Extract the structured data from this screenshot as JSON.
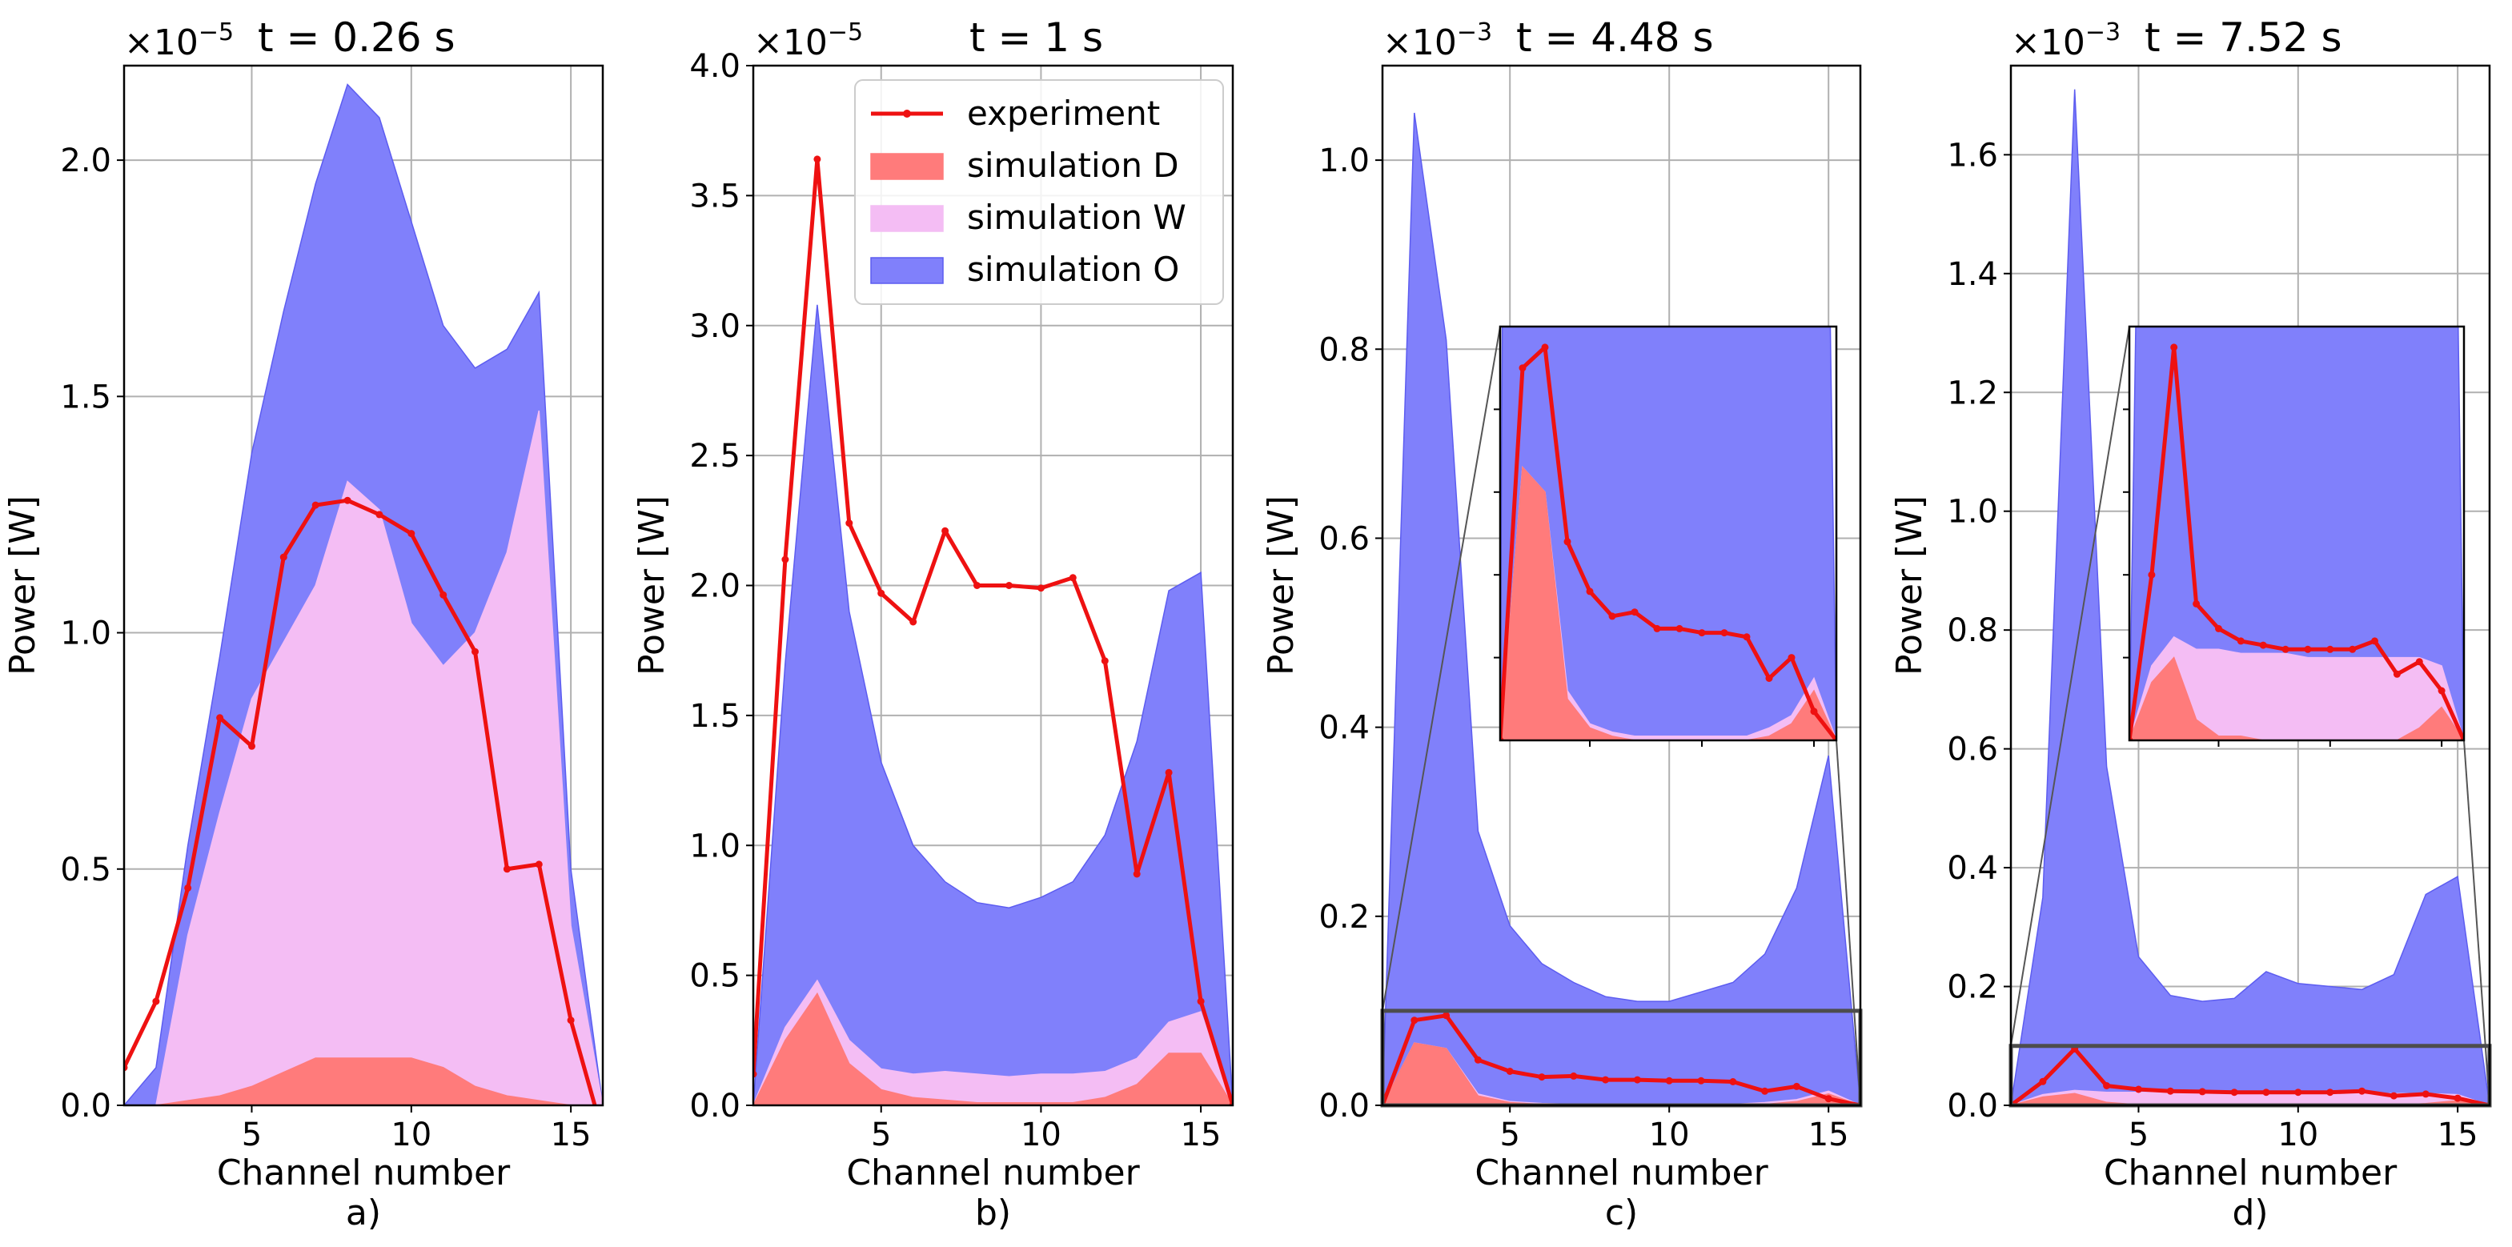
{
  "chart_data": [
    {
      "type": "area",
      "panel_label": "a)",
      "title": "t = 0.26 s",
      "multiplier_base": "×10",
      "multiplier_exp": "−5",
      "xlabel": "Channel number",
      "ylabel": "Power [W]",
      "xlim": [
        1,
        16
      ],
      "ylim": [
        0,
        2.2
      ],
      "xticks": [
        5,
        10,
        15
      ],
      "yticks": [
        0.0,
        0.5,
        1.0,
        1.5,
        2.0
      ],
      "ytick_labels": [
        "0.0",
        "0.5",
        "1.0",
        "1.5",
        "2.0"
      ],
      "x": [
        1,
        2,
        3,
        4,
        5,
        6,
        7,
        8,
        9,
        10,
        11,
        12,
        13,
        14,
        15,
        16
      ],
      "series": [
        {
          "name": "simulation O",
          "values": [
            0.0,
            0.08,
            0.55,
            0.95,
            1.38,
            1.68,
            1.95,
            2.16,
            2.09,
            1.87,
            1.65,
            1.56,
            1.6,
            1.72,
            0.5,
            0.0
          ]
        },
        {
          "name": "simulation W",
          "values": [
            0.0,
            0.0,
            0.36,
            0.62,
            0.86,
            0.98,
            1.1,
            1.32,
            1.26,
            1.02,
            0.93,
            1.0,
            1.17,
            1.47,
            0.38,
            0.0
          ]
        },
        {
          "name": "simulation D",
          "values": [
            0.0,
            0.0,
            0.01,
            0.02,
            0.04,
            0.07,
            0.1,
            0.1,
            0.1,
            0.1,
            0.08,
            0.04,
            0.02,
            0.01,
            0.0,
            0.0
          ]
        },
        {
          "name": "experiment",
          "values": [
            0.08,
            0.22,
            0.46,
            0.82,
            0.76,
            1.16,
            1.27,
            1.28,
            1.25,
            1.21,
            1.08,
            0.96,
            0.5,
            0.51,
            0.18,
            -0.06
          ]
        }
      ]
    },
    {
      "type": "area",
      "panel_label": "b)",
      "title": "t = 1 s",
      "multiplier_base": "×10",
      "multiplier_exp": "−5",
      "xlabel": "Channel number",
      "ylabel": "Power [W]",
      "xlim": [
        1,
        16
      ],
      "ylim": [
        0,
        4.0
      ],
      "xticks": [
        5,
        10,
        15
      ],
      "yticks": [
        0.0,
        0.5,
        1.0,
        1.5,
        2.0,
        2.5,
        3.0,
        3.5,
        4.0
      ],
      "ytick_labels": [
        "0.0",
        "0.5",
        "1.0",
        "1.5",
        "2.0",
        "2.5",
        "3.0",
        "3.5",
        "4.0"
      ],
      "x": [
        1,
        2,
        3,
        4,
        5,
        6,
        7,
        8,
        9,
        10,
        11,
        12,
        13,
        14,
        15,
        16
      ],
      "series": [
        {
          "name": "simulation O",
          "values": [
            0.0,
            1.7,
            3.08,
            1.9,
            1.32,
            1.0,
            0.86,
            0.78,
            0.76,
            0.8,
            0.86,
            1.04,
            1.4,
            1.98,
            2.05,
            0.0
          ]
        },
        {
          "name": "simulation W",
          "values": [
            0.0,
            0.3,
            0.48,
            0.25,
            0.14,
            0.12,
            0.13,
            0.12,
            0.11,
            0.12,
            0.12,
            0.13,
            0.18,
            0.32,
            0.36,
            0.0
          ]
        },
        {
          "name": "simulation D",
          "values": [
            0.0,
            0.25,
            0.43,
            0.16,
            0.06,
            0.03,
            0.02,
            0.01,
            0.01,
            0.01,
            0.01,
            0.03,
            0.08,
            0.2,
            0.2,
            0.0
          ]
        },
        {
          "name": "experiment",
          "values": [
            0.12,
            2.1,
            3.64,
            2.24,
            1.97,
            1.86,
            2.21,
            2.0,
            2.0,
            1.99,
            2.03,
            1.71,
            0.89,
            1.28,
            0.4,
            0.0
          ]
        }
      ],
      "legend": {
        "placement": "top-right",
        "entries": [
          "experiment",
          "simulation D",
          "simulation W",
          "simulation O"
        ]
      }
    },
    {
      "type": "area",
      "panel_label": "c)",
      "title": "t = 4.48 s",
      "multiplier_base": "×10",
      "multiplier_exp": "−3",
      "xlabel": "Channel number",
      "ylabel": "Power [W]",
      "xlim": [
        1,
        16
      ],
      "ylim": [
        0,
        1.1
      ],
      "xticks": [
        5,
        10,
        15
      ],
      "yticks": [
        0.0,
        0.2,
        0.4,
        0.6,
        0.8,
        1.0
      ],
      "ytick_labels": [
        "0.0",
        "0.2",
        "0.4",
        "0.6",
        "0.8",
        "1.0"
      ],
      "zoom_box_ylim": [
        0,
        0.1
      ],
      "x": [
        1,
        2,
        3,
        4,
        5,
        6,
        7,
        8,
        9,
        10,
        11,
        12,
        13,
        14,
        15,
        16
      ],
      "series": [
        {
          "name": "simulation O",
          "values": [
            0.0,
            1.05,
            0.81,
            0.29,
            0.19,
            0.15,
            0.13,
            0.115,
            0.11,
            0.11,
            0.12,
            0.13,
            0.16,
            0.23,
            0.37,
            0.0
          ]
        },
        {
          "name": "simulation W",
          "values": [
            0.0,
            0.066,
            0.06,
            0.012,
            0.004,
            0.002,
            0.001,
            0.001,
            0.001,
            0.001,
            0.001,
            0.001,
            0.003,
            0.006,
            0.015,
            0.0
          ]
        },
        {
          "name": "simulation D",
          "values": [
            0.0,
            0.066,
            0.06,
            0.01,
            0.003,
            0.001,
            0.0,
            0.0,
            0.0,
            0.0,
            0.0,
            0.0,
            0.001,
            0.004,
            0.012,
            0.0
          ]
        },
        {
          "name": "experiment",
          "values": [
            0.0,
            0.09,
            0.095,
            0.048,
            0.036,
            0.03,
            0.031,
            0.027,
            0.027,
            0.026,
            0.026,
            0.025,
            0.015,
            0.02,
            0.007,
            0.0
          ]
        }
      ]
    },
    {
      "type": "area",
      "panel_label": "d)",
      "title": "t = 7.52 s",
      "multiplier_base": "×10",
      "multiplier_exp": "−3",
      "xlabel": "Channel number",
      "ylabel": "Power [W]",
      "xlim": [
        1,
        16
      ],
      "ylim": [
        0,
        1.75
      ],
      "xticks": [
        5,
        10,
        15
      ],
      "yticks": [
        0.0,
        0.2,
        0.4,
        0.6,
        0.8,
        1.0,
        1.2,
        1.4,
        1.6
      ],
      "ytick_labels": [
        "0.0",
        "0.2",
        "0.4",
        "0.6",
        "0.8",
        "1.0",
        "1.2",
        "1.4",
        "1.6"
      ],
      "zoom_box_ylim": [
        0,
        0.1
      ],
      "x": [
        1,
        2,
        3,
        4,
        5,
        6,
        7,
        8,
        9,
        10,
        11,
        12,
        13,
        14,
        15,
        16
      ],
      "series": [
        {
          "name": "simulation O",
          "values": [
            0.0,
            0.35,
            1.71,
            0.57,
            0.25,
            0.185,
            0.175,
            0.18,
            0.225,
            0.205,
            0.2,
            0.195,
            0.22,
            0.355,
            0.385,
            0.0
          ]
        },
        {
          "name": "simulation W",
          "values": [
            0.0,
            0.018,
            0.025,
            0.022,
            0.022,
            0.021,
            0.021,
            0.021,
            0.02,
            0.02,
            0.02,
            0.02,
            0.02,
            0.02,
            0.018,
            0.0
          ]
        },
        {
          "name": "simulation D",
          "values": [
            0.0,
            0.014,
            0.02,
            0.005,
            0.001,
            0.001,
            0.0,
            0.0,
            0.0,
            0.0,
            0.0,
            0.0,
            0.0,
            0.003,
            0.008,
            0.0
          ]
        },
        {
          "name": "experiment",
          "values": [
            0.0,
            0.04,
            0.095,
            0.033,
            0.027,
            0.024,
            0.023,
            0.022,
            0.022,
            0.022,
            0.022,
            0.024,
            0.016,
            0.019,
            0.012,
            0.0
          ]
        }
      ]
    }
  ],
  "colors": {
    "experiment": "#ee1111",
    "simulation_D": "#ff7b7b",
    "simulation_W": "#f4bdf4",
    "simulation_O": "#8080fb",
    "simulation_O_edge": "#5c5cf0",
    "grid": "#b0b0b0",
    "zoom_box": "#4d4d4d"
  }
}
